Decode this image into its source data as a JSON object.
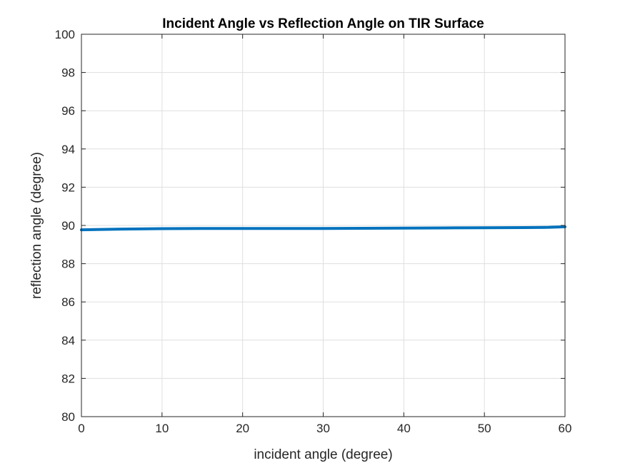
{
  "chart_data": {
    "type": "line",
    "title": "Incident Angle vs Reflection Angle on TIR Surface",
    "xlabel": "incident angle (degree)",
    "ylabel": "reflection angle (degree)",
    "xlim": [
      0,
      60
    ],
    "ylim": [
      80,
      100
    ],
    "xticks": [
      "0",
      "10",
      "20",
      "30",
      "40",
      "50",
      "60"
    ],
    "yticks": [
      "80",
      "82",
      "84",
      "86",
      "88",
      "90",
      "92",
      "94",
      "96",
      "98",
      "100"
    ],
    "grid": true,
    "series": [
      {
        "color": "#0072BD",
        "x": [
          0,
          5,
          10,
          15,
          20,
          25,
          30,
          35,
          40,
          45,
          50,
          55,
          58,
          60
        ],
        "y": [
          89.77,
          89.81,
          89.83,
          89.84,
          89.84,
          89.84,
          89.84,
          89.85,
          89.86,
          89.87,
          89.88,
          89.89,
          89.9,
          89.93
        ]
      }
    ]
  }
}
